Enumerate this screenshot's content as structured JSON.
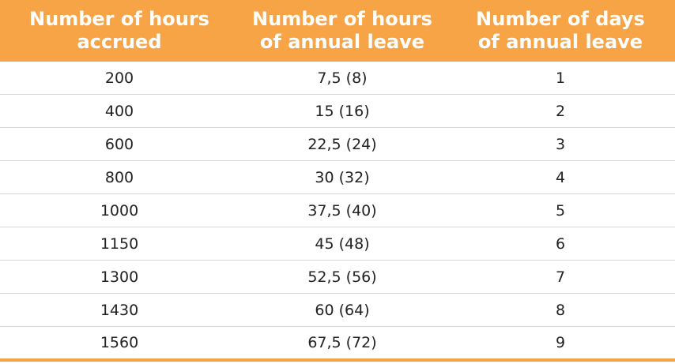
{
  "table": {
    "headers": [
      [
        "Number of hours",
        "accrued"
      ],
      [
        "Number of hours",
        "of annual leave"
      ],
      [
        "Number of days",
        "of annual leave"
      ]
    ],
    "rows": [
      [
        "200",
        "7,5 (8)",
        "1"
      ],
      [
        "400",
        "15 (16)",
        "2"
      ],
      [
        "600",
        "22,5 (24)",
        "3"
      ],
      [
        "800",
        "30 (32)",
        "4"
      ],
      [
        "1000",
        "37,5 (40)",
        "5"
      ],
      [
        "1150",
        "45 (48)",
        "6"
      ],
      [
        "1300",
        "52,5 (56)",
        "7"
      ],
      [
        "1430",
        "60 (64)",
        "8"
      ],
      [
        "1560",
        "67,5 (72)",
        "9"
      ]
    ]
  }
}
